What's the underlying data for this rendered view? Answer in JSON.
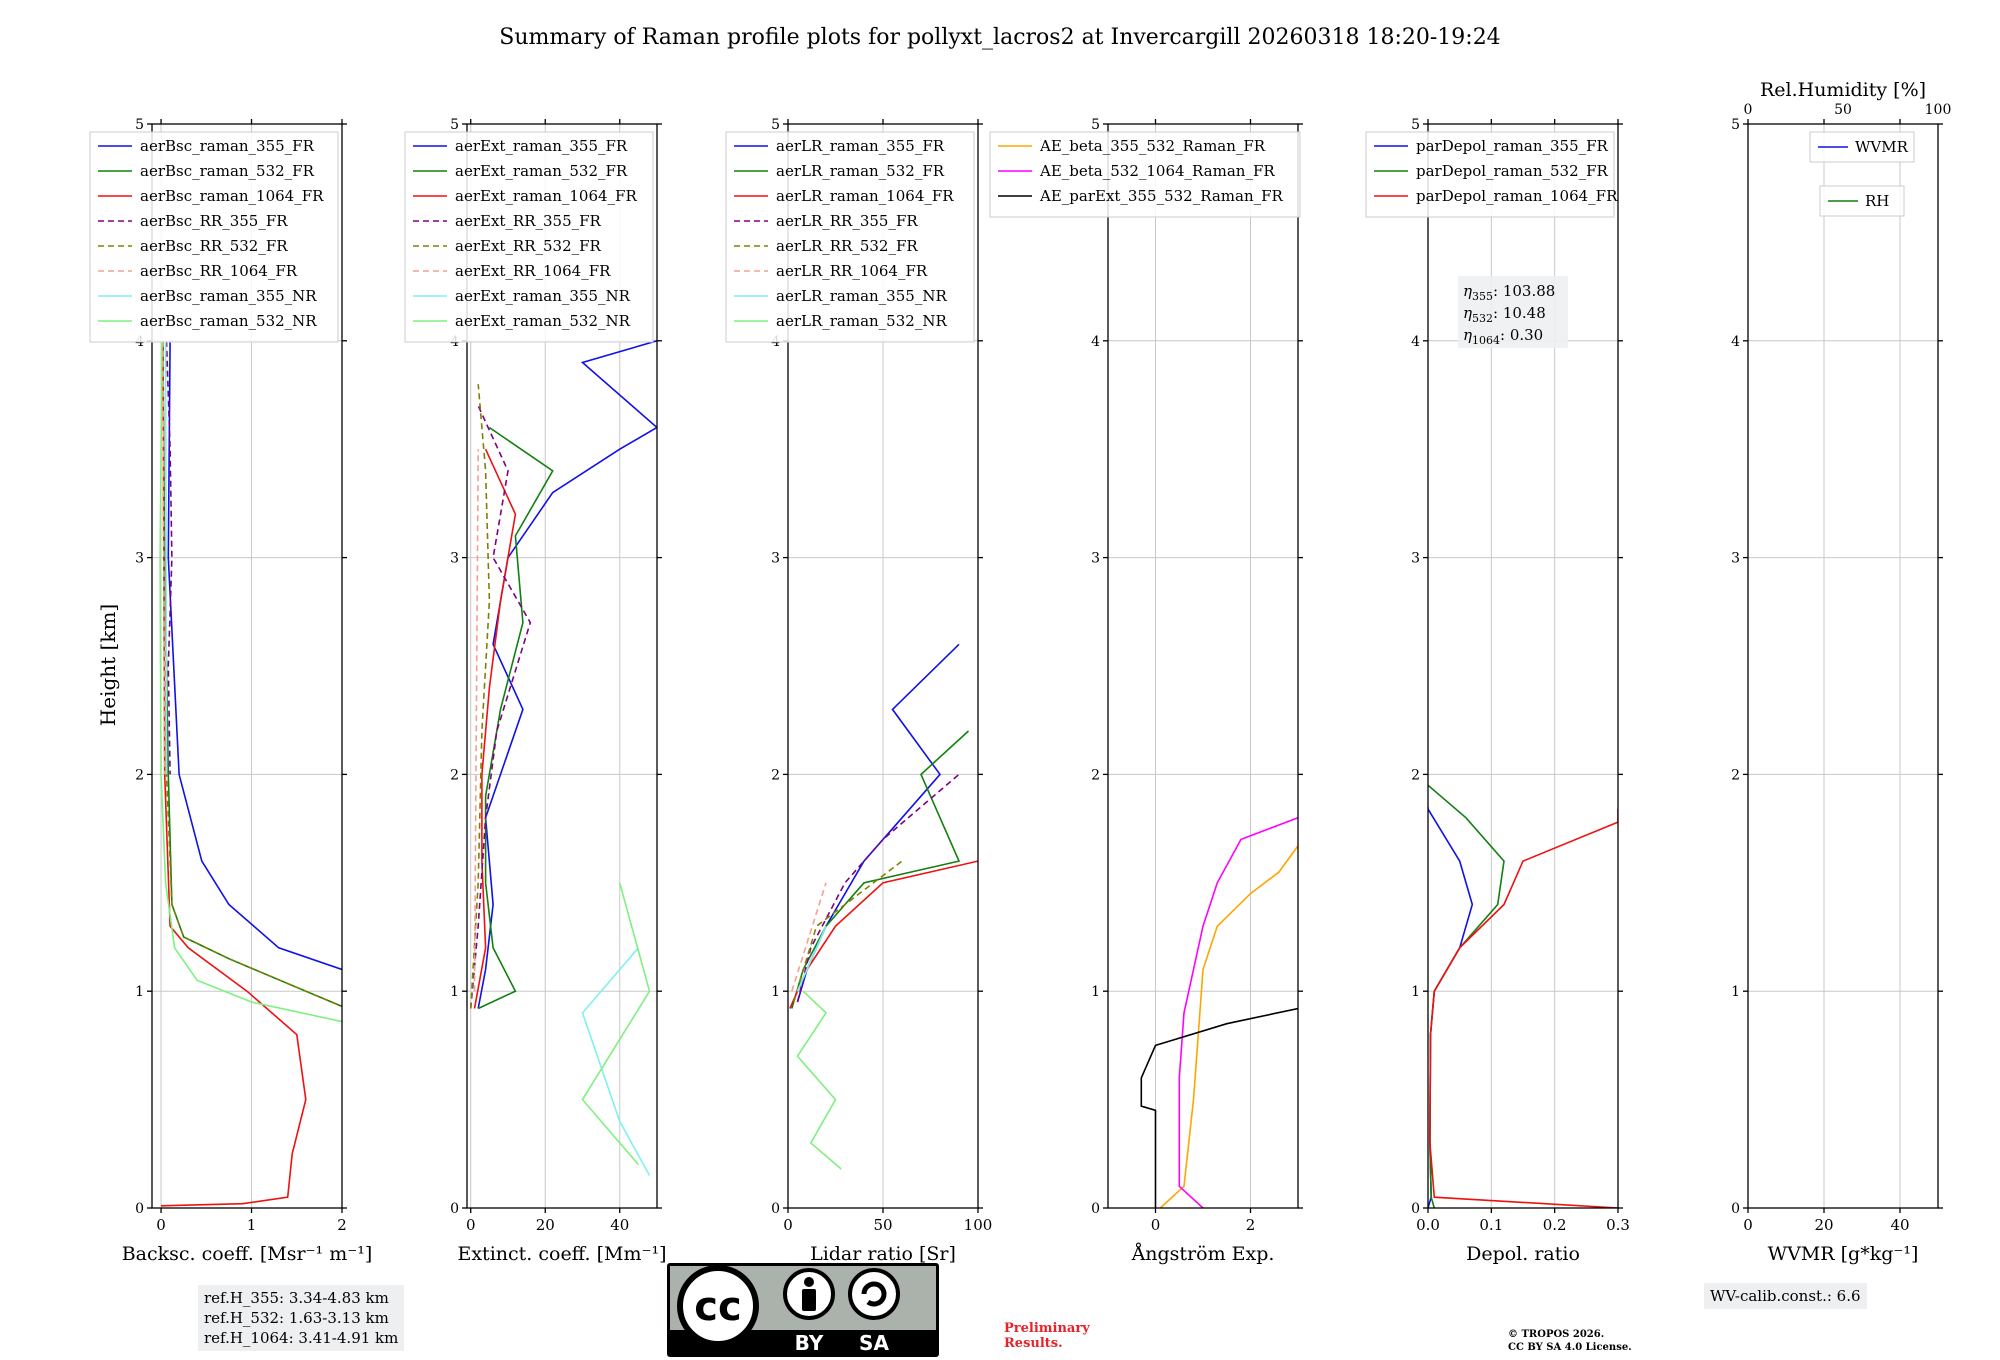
{
  "title": "Summary of Raman profile plots for pollyxt_lacros2 at Invercargill 20260318 18:20-19:24",
  "ylabel": "Height [km]",
  "height_ticks": [
    "0",
    "1",
    "2",
    "3",
    "4",
    "5"
  ],
  "colors": {
    "c355": "#1010e8",
    "c532": "#108010",
    "c1064": "#f01010",
    "rr355": "#800080",
    "rr532": "#808000",
    "rr1064": "#f4a090",
    "nr355": "#7ff0f0",
    "nr532": "#7ff07f",
    "orange": "#ffa500",
    "magenta": "#ff00ff",
    "black": "#000000"
  },
  "chart_data": [
    {
      "type": "line",
      "id": "bsc",
      "xlabel": "Backsc. coeff. [Msr⁻¹ m⁻¹]",
      "xlim": [
        -0.1,
        2.0
      ],
      "xticks": [
        {
          "v": 0,
          "t": "0"
        },
        {
          "v": 1,
          "t": "1"
        },
        {
          "v": 2,
          "t": "2"
        }
      ],
      "ylim": [
        0,
        5
      ],
      "legend": "top-left",
      "series": [
        {
          "name": "aerBsc_raman_355_FR",
          "color": "#1010e8",
          "dash": false,
          "y": [
            4.0,
            3.0,
            2.0,
            1.6,
            1.4,
            1.2,
            1.1
          ],
          "x": [
            0.1,
            0.08,
            0.2,
            0.45,
            0.75,
            1.3,
            2.0
          ]
        },
        {
          "name": "aerBsc_raman_532_FR",
          "color": "#108010",
          "dash": false,
          "y": [
            4.0,
            3.0,
            2.0,
            1.4,
            1.25,
            1.15,
            1.0,
            0.93
          ],
          "x": [
            0.02,
            0.04,
            0.08,
            0.12,
            0.25,
            0.75,
            1.6,
            2.0
          ]
        },
        {
          "name": "aerBsc_raman_1064_FR",
          "color": "#f01010",
          "dash": false,
          "y": [
            4.0,
            3.0,
            2.0,
            1.3,
            1.2,
            1.0,
            0.8,
            0.5,
            0.25,
            0.05,
            0.02,
            0.01
          ],
          "x": [
            0.02,
            0.03,
            0.04,
            0.1,
            0.3,
            0.95,
            1.5,
            1.6,
            1.45,
            1.4,
            0.9,
            0.0
          ]
        },
        {
          "name": "aerBsc_RR_355_FR",
          "color": "#800080",
          "dash": true,
          "y": [
            4.0,
            3.5,
            3.0,
            2.5,
            2.0
          ],
          "x": [
            0.06,
            0.1,
            0.12,
            0.08,
            0.1
          ]
        },
        {
          "name": "aerBsc_RR_532_FR",
          "color": "#808000",
          "dash": true,
          "y": [
            4.0,
            3.0,
            2.0,
            1.4,
            1.25,
            1.15,
            1.0,
            0.93
          ],
          "x": [
            0.02,
            0.03,
            0.06,
            0.12,
            0.25,
            0.75,
            1.6,
            2.0
          ]
        },
        {
          "name": "aerBsc_RR_1064_FR",
          "color": "#f4a090",
          "dash": true,
          "y": [
            4.0,
            2.0
          ],
          "x": [
            0.02,
            0.04
          ]
        },
        {
          "name": "aerBsc_raman_355_NR",
          "color": "#7ff0f0",
          "dash": false,
          "y": [
            4.0,
            2.0
          ],
          "x": [
            0.05,
            0.06
          ]
        },
        {
          "name": "aerBsc_raman_532_NR",
          "color": "#7ff07f",
          "dash": false,
          "y": [
            4.0,
            3.0,
            2.0,
            1.5,
            1.2,
            1.05,
            0.95,
            0.86
          ],
          "x": [
            0.01,
            -0.01,
            0.0,
            0.05,
            0.15,
            0.4,
            1.0,
            2.0
          ]
        }
      ]
    },
    {
      "type": "line",
      "id": "ext",
      "xlabel": "Extinct. coeff. [Mm⁻¹]",
      "xlim": [
        -1,
        50
      ],
      "xticks": [
        {
          "v": 0,
          "t": "0"
        },
        {
          "v": 20,
          "t": "20"
        },
        {
          "v": 40,
          "t": "40"
        }
      ],
      "ylim": [
        0,
        5
      ],
      "legend": "top-left",
      "series": [
        {
          "name": "aerExt_raman_355_FR",
          "color": "#1010e8",
          "dash": false,
          "y": [
            0.92,
            1.1,
            1.4,
            1.8,
            2.0,
            2.3,
            2.6,
            3.0,
            3.3,
            3.5,
            3.6,
            3.9,
            4.0
          ],
          "x": [
            2,
            4,
            6,
            4,
            8,
            14,
            6,
            10,
            22,
            40,
            50,
            30,
            50
          ]
        },
        {
          "name": "aerExt_raman_532_FR",
          "color": "#108010",
          "dash": false,
          "y": [
            0.92,
            1.0,
            1.2,
            1.5,
            1.9,
            2.3,
            2.7,
            3.1,
            3.4,
            3.6
          ],
          "x": [
            2,
            12,
            6,
            4,
            4,
            8,
            14,
            12,
            22,
            5
          ]
        },
        {
          "name": "aerExt_raman_1064_FR",
          "color": "#f01010",
          "dash": false,
          "y": [
            0.92,
            1.2,
            1.6,
            2.0,
            2.4,
            2.8,
            3.2,
            3.5
          ],
          "x": [
            1,
            4,
            3,
            3,
            5,
            8,
            12,
            4
          ]
        },
        {
          "name": "aerExt_RR_355_FR",
          "color": "#800080",
          "dash": true,
          "y": [
            0.92,
            1.3,
            1.8,
            2.2,
            2.7,
            3.0,
            3.4,
            3.7
          ],
          "x": [
            0,
            2,
            4,
            7,
            16,
            6,
            10,
            2
          ]
        },
        {
          "name": "aerExt_RR_532_FR",
          "color": "#808000",
          "dash": true,
          "y": [
            0.92,
            1.5,
            2.2,
            2.8,
            3.4,
            3.8
          ],
          "x": [
            0,
            2,
            3,
            5,
            4,
            2
          ]
        },
        {
          "name": "aerExt_RR_1064_FR",
          "color": "#f4a090",
          "dash": true,
          "y": [
            1.0,
            3.5
          ],
          "x": [
            1,
            2
          ]
        },
        {
          "name": "aerExt_raman_355_NR",
          "color": "#7ff0f0",
          "dash": false,
          "y": [
            0.15,
            0.4,
            0.9,
            1.2
          ],
          "x": [
            48,
            40,
            30,
            45
          ]
        },
        {
          "name": "aerExt_raman_532_NR",
          "color": "#7ff07f",
          "dash": false,
          "y": [
            0.2,
            0.5,
            1.0,
            1.5
          ],
          "x": [
            45,
            30,
            48,
            40
          ]
        }
      ]
    },
    {
      "type": "line",
      "id": "lr",
      "xlabel": "Lidar ratio [Sr]",
      "xlim": [
        0,
        100
      ],
      "xticks": [
        {
          "v": 0,
          "t": "0"
        },
        {
          "v": 50,
          "t": "50"
        },
        {
          "v": 100,
          "t": "100"
        }
      ],
      "ylim": [
        0,
        5
      ],
      "legend": "top-left",
      "series": [
        {
          "name": "aerLR_raman_355_FR",
          "color": "#1010e8",
          "dash": false,
          "y": [
            0.95,
            1.1,
            1.3,
            1.6,
            1.8,
            2.0,
            2.3,
            2.6
          ],
          "x": [
            5,
            10,
            20,
            40,
            60,
            80,
            55,
            90
          ]
        },
        {
          "name": "aerLR_raman_532_FR",
          "color": "#108010",
          "dash": false,
          "y": [
            0.92,
            1.1,
            1.3,
            1.5,
            1.6,
            2.0,
            2.2
          ],
          "x": [
            2,
            8,
            20,
            40,
            90,
            70,
            95
          ]
        },
        {
          "name": "aerLR_raman_1064_FR",
          "color": "#f01010",
          "dash": false,
          "y": [
            0.92,
            1.1,
            1.3,
            1.5,
            1.6
          ],
          "x": [
            1,
            10,
            25,
            50,
            100
          ]
        },
        {
          "name": "aerLR_RR_355_FR",
          "color": "#800080",
          "dash": true,
          "y": [
            0.95,
            1.2,
            1.5,
            1.7,
            2.0
          ],
          "x": [
            5,
            12,
            30,
            50,
            90
          ]
        },
        {
          "name": "aerLR_RR_532_FR",
          "color": "#808000",
          "dash": true,
          "y": [
            0.95,
            1.3,
            1.6
          ],
          "x": [
            3,
            15,
            60
          ]
        },
        {
          "name": "aerLR_RR_1064_FR",
          "color": "#f4a090",
          "dash": true,
          "y": [
            1.0,
            1.5
          ],
          "x": [
            2,
            20
          ]
        },
        {
          "name": "aerLR_raman_355_NR",
          "color": "#7ff0f0",
          "dash": false,
          "y": [
            1.0,
            1.3
          ],
          "x": [
            5,
            20
          ]
        },
        {
          "name": "aerLR_raman_532_NR",
          "color": "#7ff07f",
          "dash": false,
          "y": [
            0.18,
            0.3,
            0.5,
            0.7,
            0.9,
            1.0
          ],
          "x": [
            28,
            12,
            25,
            5,
            20,
            8
          ]
        }
      ]
    },
    {
      "type": "line",
      "id": "ae",
      "xlabel": "Ångström Exp.",
      "xlim": [
        -1,
        3
      ],
      "xticks": [
        {
          "v": 0,
          "t": "0"
        },
        {
          "v": 2,
          "t": "2"
        }
      ],
      "ylim": [
        0,
        5
      ],
      "legend": "top-left",
      "series": [
        {
          "name": "AE_beta_355_532_Raman_FR",
          "color": "#ffa500",
          "dash": false,
          "y": [
            0.0,
            0.1,
            0.5,
            0.8,
            1.1,
            1.3,
            1.45,
            1.55,
            1.67
          ],
          "x": [
            0.1,
            0.6,
            0.8,
            0.9,
            1.0,
            1.3,
            2.0,
            2.6,
            3.0
          ]
        },
        {
          "name": "AE_beta_532_1064_Raman_FR",
          "color": "#ff00ff",
          "dash": false,
          "y": [
            0.0,
            0.1,
            0.6,
            0.9,
            1.1,
            1.3,
            1.5,
            1.7,
            1.8
          ],
          "x": [
            1.0,
            0.5,
            0.5,
            0.6,
            0.8,
            1.0,
            1.3,
            1.8,
            3.0
          ]
        },
        {
          "name": "AE_parExt_355_532_Raman_FR",
          "color": "#000000",
          "dash": false,
          "y": [
            0.0,
            0.45,
            0.47,
            0.6,
            0.75,
            0.85,
            0.92
          ],
          "x": [
            0.0,
            0.0,
            -0.3,
            -0.3,
            0.0,
            1.5,
            3.0
          ]
        }
      ]
    },
    {
      "type": "line",
      "id": "depol",
      "xlabel": "Depol. ratio",
      "xlim": [
        0,
        0.3
      ],
      "xticks": [
        {
          "v": 0,
          "t": "0.0"
        },
        {
          "v": 0.1,
          "t": "0.1"
        },
        {
          "v": 0.2,
          "t": "0.2"
        },
        {
          "v": 0.3,
          "t": "0.3"
        }
      ],
      "ylim": [
        0,
        5
      ],
      "legend": "top-left",
      "series": [
        {
          "name": "parDepol_raman_355_FR",
          "color": "#1010e8",
          "dash": false,
          "y": [
            0.0,
            0.05,
            0.3,
            0.8,
            1.0,
            1.2,
            1.4,
            1.6,
            1.84,
            1.85
          ],
          "x": [
            0.0,
            0.005,
            0.003,
            0.004,
            0.01,
            0.05,
            0.07,
            0.05,
            0.0,
            0.0
          ]
        },
        {
          "name": "parDepol_raman_532_FR",
          "color": "#108010",
          "dash": false,
          "y": [
            0.0,
            0.05,
            0.3,
            0.8,
            1.0,
            1.2,
            1.4,
            1.6,
            1.8,
            1.95
          ],
          "x": [
            0.01,
            0.005,
            0.003,
            0.004,
            0.01,
            0.05,
            0.11,
            0.12,
            0.06,
            0.0
          ]
        },
        {
          "name": "parDepol_raman_1064_FR",
          "color": "#f01010",
          "dash": false,
          "y": [
            0.0,
            0.05,
            0.3,
            0.8,
            1.0,
            1.2,
            1.4,
            1.6,
            1.78,
            1.84
          ],
          "x": [
            0.3,
            0.01,
            0.003,
            0.004,
            0.01,
            0.05,
            0.12,
            0.15,
            0.3,
            0.3
          ]
        }
      ]
    },
    {
      "type": "line",
      "id": "wv",
      "xlabel": "WVMR [g*kg⁻¹]",
      "xlim": [
        0,
        50
      ],
      "xticks": [
        {
          "v": 0,
          "t": "0"
        },
        {
          "v": 20,
          "t": "20"
        },
        {
          "v": 40,
          "t": "40"
        }
      ],
      "top_label": "Rel.Humidity [%]",
      "top_ticks": [
        "0",
        "50",
        "100"
      ],
      "ylim": [
        0,
        5
      ],
      "legend": "top-right",
      "series": [
        {
          "name": "WVMR",
          "color": "#1010e8",
          "dash": false,
          "y": [],
          "x": []
        },
        {
          "name": "RH",
          "color": "#108010",
          "dash": false,
          "y": [],
          "x": []
        }
      ]
    }
  ],
  "depol_note": [
    {
      "sym": "η",
      "sub": "355",
      "val": ": 103.88"
    },
    {
      "sym": "η",
      "sub": "532",
      "val": ": 10.48"
    },
    {
      "sym": "η",
      "sub": "1064",
      "val": ": 0.30"
    }
  ],
  "ref_heights": [
    "ref.H_355: 3.34-4.83 km",
    "ref.H_532: 1.63-3.13 km",
    "ref.H_1064: 3.41-4.91 km"
  ],
  "wv_calib": "WV-calib.const.: 6.6",
  "preliminary": [
    "Preliminary",
    "Results."
  ],
  "copyright": [
    "© TROPOS 2026.",
    "CC BY SA 4.0 License."
  ],
  "cc_badge": {
    "main": "cc",
    "by": "BY",
    "sa": "SA"
  }
}
